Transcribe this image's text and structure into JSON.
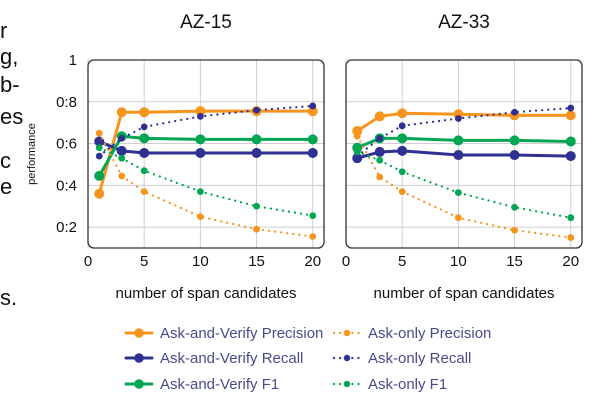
{
  "stray_text": [
    "r",
    "g,",
    "b-",
    "es",
    "c",
    "e",
    "s."
  ],
  "colors": {
    "precision": "#f7941d",
    "recall": "#2e3192",
    "f1": "#00a651"
  },
  "chart_data": [
    {
      "type": "line",
      "title": "AZ-15",
      "xlabel": "number of span candidates",
      "ylabel": "performance",
      "x": [
        1,
        3,
        5,
        10,
        15,
        20
      ],
      "xticks": [
        "0",
        "5",
        "10",
        "15",
        "20"
      ],
      "yticks": [
        "0:2",
        "0:4",
        "0:6",
        "0:8",
        "1"
      ],
      "xlim": [
        0,
        21
      ],
      "ylim": [
        0.1,
        1.0
      ],
      "series": [
        {
          "name": "Ask-and-Verify Precision",
          "style": "solid",
          "color_key": "precision",
          "values": [
            0.36,
            0.75,
            0.75,
            0.755,
            0.755,
            0.755
          ]
        },
        {
          "name": "Ask-and-Verify Recall",
          "style": "solid",
          "color_key": "recall",
          "values": [
            0.61,
            0.565,
            0.555,
            0.555,
            0.555,
            0.555
          ]
        },
        {
          "name": "Ask-and-Verify F1",
          "style": "solid",
          "color_key": "f1",
          "values": [
            0.445,
            0.635,
            0.625,
            0.62,
            0.62,
            0.62
          ]
        },
        {
          "name": "Ask-only Precision",
          "style": "dotted",
          "color_key": "precision",
          "values": [
            0.65,
            0.445,
            0.37,
            0.25,
            0.19,
            0.155
          ]
        },
        {
          "name": "Ask-only Recall",
          "style": "dotted",
          "color_key": "recall",
          "values": [
            0.54,
            0.625,
            0.68,
            0.73,
            0.76,
            0.78
          ]
        },
        {
          "name": "Ask-only F1",
          "style": "dotted",
          "color_key": "f1",
          "values": [
            0.58,
            0.53,
            0.47,
            0.37,
            0.3,
            0.255
          ]
        }
      ]
    },
    {
      "type": "line",
      "title": "AZ-33",
      "xlabel": "number of span candidates",
      "ylabel": "",
      "x": [
        1,
        3,
        5,
        10,
        15,
        20
      ],
      "xticks": [
        "0",
        "5",
        "10",
        "15",
        "20"
      ],
      "yticks": [],
      "xlim": [
        0,
        21
      ],
      "ylim": [
        0.1,
        1.0
      ],
      "series": [
        {
          "name": "Ask-and-Verify Precision",
          "style": "solid",
          "color_key": "precision",
          "values": [
            0.66,
            0.73,
            0.745,
            0.74,
            0.735,
            0.735
          ]
        },
        {
          "name": "Ask-and-Verify Recall",
          "style": "solid",
          "color_key": "recall",
          "values": [
            0.53,
            0.56,
            0.565,
            0.545,
            0.545,
            0.54
          ]
        },
        {
          "name": "Ask-and-Verify F1",
          "style": "solid",
          "color_key": "f1",
          "values": [
            0.58,
            0.625,
            0.625,
            0.615,
            0.615,
            0.61
          ]
        },
        {
          "name": "Ask-only Precision",
          "style": "dotted",
          "color_key": "precision",
          "values": [
            0.635,
            0.44,
            0.37,
            0.245,
            0.185,
            0.15
          ]
        },
        {
          "name": "Ask-only Recall",
          "style": "dotted",
          "color_key": "recall",
          "values": [
            0.54,
            0.625,
            0.685,
            0.72,
            0.75,
            0.77
          ]
        },
        {
          "name": "Ask-only F1",
          "style": "dotted",
          "color_key": "f1",
          "values": [
            0.56,
            0.52,
            0.465,
            0.365,
            0.295,
            0.245
          ]
        }
      ]
    }
  ],
  "legend": {
    "items": [
      {
        "label": "Ask-and-Verify Precision",
        "style": "solid",
        "color_key": "precision"
      },
      {
        "label": "Ask-only Precision",
        "style": "dotted",
        "color_key": "precision"
      },
      {
        "label": "Ask-and-Verify Recall",
        "style": "solid",
        "color_key": "recall"
      },
      {
        "label": "Ask-only Recall",
        "style": "dotted",
        "color_key": "recall"
      },
      {
        "label": "Ask-and-Verify F1",
        "style": "solid",
        "color_key": "f1"
      },
      {
        "label": "Ask-only F1",
        "style": "dotted",
        "color_key": "f1"
      }
    ]
  }
}
